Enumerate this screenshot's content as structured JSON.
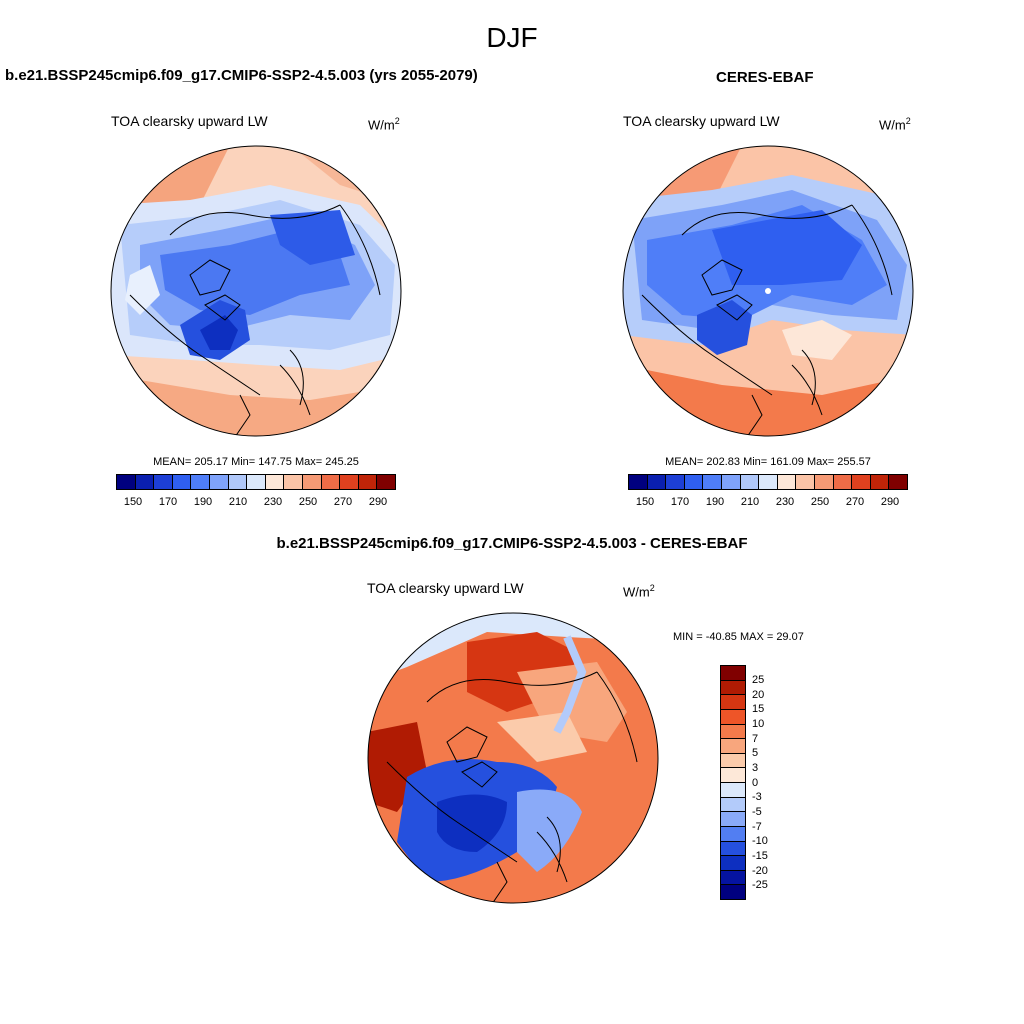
{
  "figure": {
    "title": "DJF"
  },
  "colors": {
    "abs_scale": [
      "#00007f",
      "#0a1fb0",
      "#1d3fd6",
      "#2f5ff0",
      "#4f7ef8",
      "#7fa3fb",
      "#b0c8fa",
      "#dbe8fb",
      "#fde7d8",
      "#fbc4a7",
      "#f69a75",
      "#ef6c47",
      "#e0411f",
      "#c02408",
      "#800000"
    ],
    "diff_scale": [
      "#800000",
      "#b01b03",
      "#d63612",
      "#ee5528",
      "#f37a4b",
      "#f8a67d",
      "#fbcbab",
      "#fde8d8",
      "#dbe8fb",
      "#b3cbfa",
      "#8aaaf8",
      "#527ef2",
      "#2550de",
      "#0d2fc0",
      "#0513a0",
      "#00007f"
    ]
  },
  "panels": [
    {
      "title": "b.e21.BSSP245cmip6.f09_g17.CMIP6-SSP2-4.5.003 (yrs 2055-2079)",
      "variable": "TOA clearsky upward LW",
      "units_base": "W/m",
      "units_exp": "2",
      "stats": "MEAN= 205.17  Min= 147.75  Max= 245.25",
      "colorbar_ticks": [
        "150",
        "170",
        "190",
        "210",
        "230",
        "250",
        "270",
        "290"
      ]
    },
    {
      "title": "CERES-EBAF",
      "variable": "TOA clearsky upward LW",
      "units_base": "W/m",
      "units_exp": "2",
      "stats": "MEAN= 202.83  Min= 161.09  Max= 255.57",
      "colorbar_ticks": [
        "150",
        "170",
        "190",
        "210",
        "230",
        "250",
        "270",
        "290"
      ]
    },
    {
      "title": "b.e21.BSSP245cmip6.f09_g17.CMIP6-SSP2-4.5.003 - CERES-EBAF",
      "variable": "TOA clearsky upward LW",
      "units_base": "W/m",
      "units_exp": "2",
      "stats": "MIN = -40.85 MAX =  29.07",
      "colorbar_ticks": [
        "25",
        "20",
        "15",
        "10",
        "7",
        "5",
        "3",
        "0",
        "-3",
        "-5",
        "-7",
        "-10",
        "-15",
        "-20",
        "-25"
      ]
    }
  ]
}
